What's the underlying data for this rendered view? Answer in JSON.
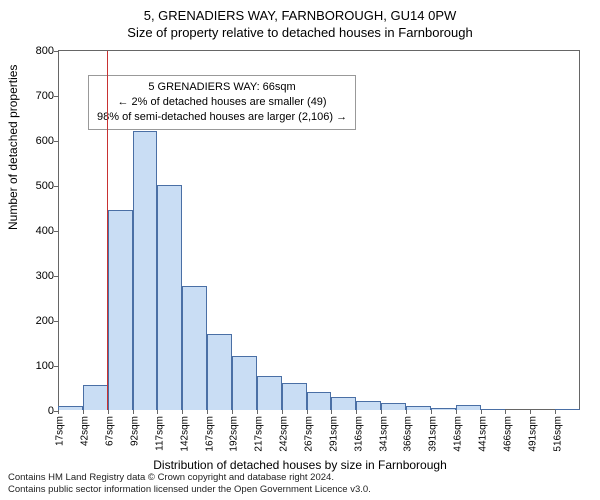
{
  "titles": {
    "main": "5, GRENADIERS WAY, FARNBOROUGH, GU14 0PW",
    "sub": "Size of property relative to detached houses in Farnborough"
  },
  "axes": {
    "y_label": "Number of detached properties",
    "x_label": "Distribution of detached houses by size in Farnborough"
  },
  "chart": {
    "type": "histogram",
    "background_color": "#ffffff",
    "bar_fill": "#c9ddf4",
    "bar_stroke": "#4a6fa5",
    "axis_color": "#666666",
    "yticks": [
      0,
      100,
      200,
      300,
      400,
      500,
      600,
      700,
      800
    ],
    "ylim_max": 800,
    "xticks": [
      "17sqm",
      "42sqm",
      "67sqm",
      "92sqm",
      "117sqm",
      "142sqm",
      "167sqm",
      "192sqm",
      "217sqm",
      "242sqm",
      "267sqm",
      "291sqm",
      "316sqm",
      "341sqm",
      "366sqm",
      "391sqm",
      "416sqm",
      "441sqm",
      "466sqm",
      "491sqm",
      "516sqm"
    ],
    "bar_values": [
      10,
      55,
      445,
      620,
      500,
      275,
      170,
      120,
      75,
      60,
      40,
      30,
      20,
      15,
      8,
      5,
      12,
      3,
      0,
      0,
      2
    ],
    "reference_line": {
      "position_index": 2,
      "color": "#c83232"
    }
  },
  "annotation": {
    "line1": "5 GRENADIERS WAY: 66sqm",
    "line2": "← 2% of detached houses are smaller (49)",
    "line3": "98% of semi-detached houses are larger (2,106) →"
  },
  "footer": {
    "line1": "Contains HM Land Registry data © Crown copyright and database right 2024.",
    "line2": "Contains public sector information licensed under the Open Government Licence v3.0."
  }
}
